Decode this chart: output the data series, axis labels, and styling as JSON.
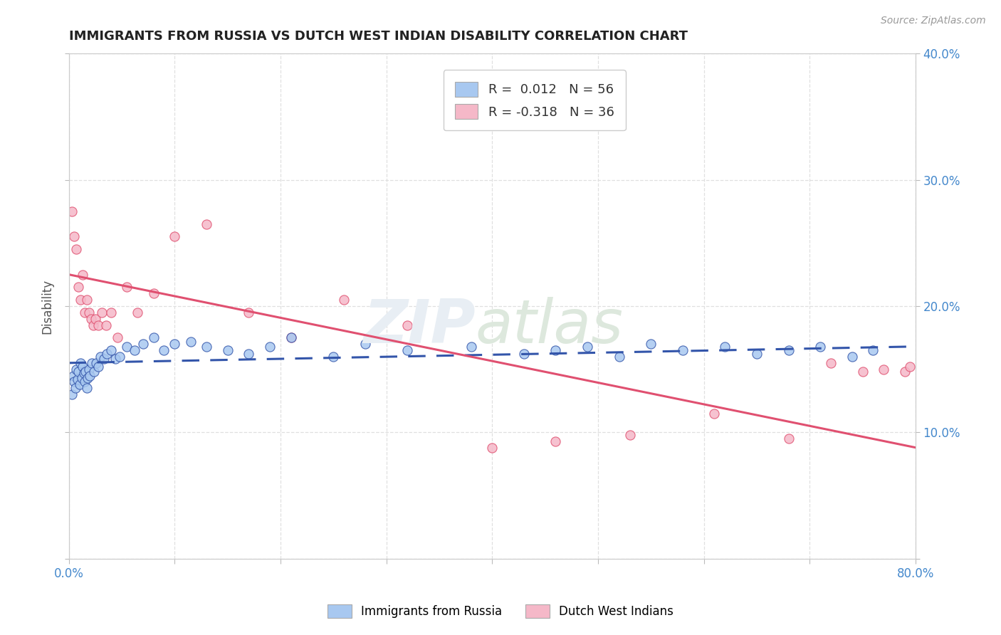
{
  "title": "IMMIGRANTS FROM RUSSIA VS DUTCH WEST INDIAN DISABILITY CORRELATION CHART",
  "source": "Source: ZipAtlas.com",
  "ylabel": "Disability",
  "xlim": [
    0.0,
    0.8
  ],
  "ylim": [
    0.0,
    0.4
  ],
  "xticks": [
    0.0,
    0.1,
    0.2,
    0.3,
    0.4,
    0.5,
    0.6,
    0.7,
    0.8
  ],
  "xticklabels": [
    "0.0%",
    "",
    "",
    "",
    "",
    "",
    "",
    "",
    "80.0%"
  ],
  "yticks": [
    0.0,
    0.1,
    0.2,
    0.3,
    0.4
  ],
  "yticklabels_left": [
    "",
    "",
    "",
    "",
    ""
  ],
  "yticklabels_right": [
    "",
    "10.0%",
    "20.0%",
    "30.0%",
    "40.0%"
  ],
  "color_russia": "#a8c8f0",
  "color_dutch": "#f5b8c8",
  "color_russia_line": "#3355aa",
  "color_dutch_line": "#e05070",
  "russia_scatter_x": [
    0.003,
    0.004,
    0.005,
    0.006,
    0.007,
    0.008,
    0.009,
    0.01,
    0.011,
    0.012,
    0.013,
    0.014,
    0.015,
    0.016,
    0.017,
    0.018,
    0.019,
    0.02,
    0.022,
    0.024,
    0.026,
    0.028,
    0.03,
    0.033,
    0.036,
    0.04,
    0.044,
    0.048,
    0.055,
    0.062,
    0.07,
    0.08,
    0.09,
    0.1,
    0.115,
    0.13,
    0.15,
    0.17,
    0.19,
    0.21,
    0.25,
    0.28,
    0.32,
    0.38,
    0.43,
    0.46,
    0.49,
    0.52,
    0.55,
    0.58,
    0.62,
    0.65,
    0.68,
    0.71,
    0.74,
    0.76
  ],
  "russia_scatter_y": [
    0.13,
    0.145,
    0.14,
    0.135,
    0.15,
    0.142,
    0.148,
    0.138,
    0.155,
    0.143,
    0.152,
    0.147,
    0.14,
    0.148,
    0.135,
    0.143,
    0.15,
    0.145,
    0.155,
    0.148,
    0.155,
    0.152,
    0.16,
    0.158,
    0.162,
    0.165,
    0.158,
    0.16,
    0.168,
    0.165,
    0.17,
    0.175,
    0.165,
    0.17,
    0.172,
    0.168,
    0.165,
    0.162,
    0.168,
    0.175,
    0.16,
    0.17,
    0.165,
    0.168,
    0.162,
    0.165,
    0.168,
    0.16,
    0.17,
    0.165,
    0.168,
    0.162,
    0.165,
    0.168,
    0.16,
    0.165
  ],
  "dutch_scatter_x": [
    0.003,
    0.005,
    0.007,
    0.009,
    0.011,
    0.013,
    0.015,
    0.017,
    0.019,
    0.021,
    0.023,
    0.025,
    0.028,
    0.031,
    0.035,
    0.04,
    0.046,
    0.055,
    0.065,
    0.08,
    0.1,
    0.13,
    0.17,
    0.21,
    0.26,
    0.32,
    0.4,
    0.46,
    0.53,
    0.61,
    0.68,
    0.72,
    0.75,
    0.77,
    0.79,
    0.795
  ],
  "dutch_scatter_y": [
    0.275,
    0.255,
    0.245,
    0.215,
    0.205,
    0.225,
    0.195,
    0.205,
    0.195,
    0.19,
    0.185,
    0.19,
    0.185,
    0.195,
    0.185,
    0.195,
    0.175,
    0.215,
    0.195,
    0.21,
    0.255,
    0.265,
    0.195,
    0.175,
    0.205,
    0.185,
    0.088,
    0.093,
    0.098,
    0.115,
    0.095,
    0.155,
    0.148,
    0.15,
    0.148,
    0.152
  ],
  "russia_line_x": [
    0.0,
    0.8
  ],
  "russia_line_y": [
    0.155,
    0.168
  ],
  "dutch_line_x": [
    0.0,
    0.8
  ],
  "dutch_line_y": [
    0.225,
    0.088
  ],
  "background_color": "#ffffff",
  "grid_color": "#e0e0e0"
}
